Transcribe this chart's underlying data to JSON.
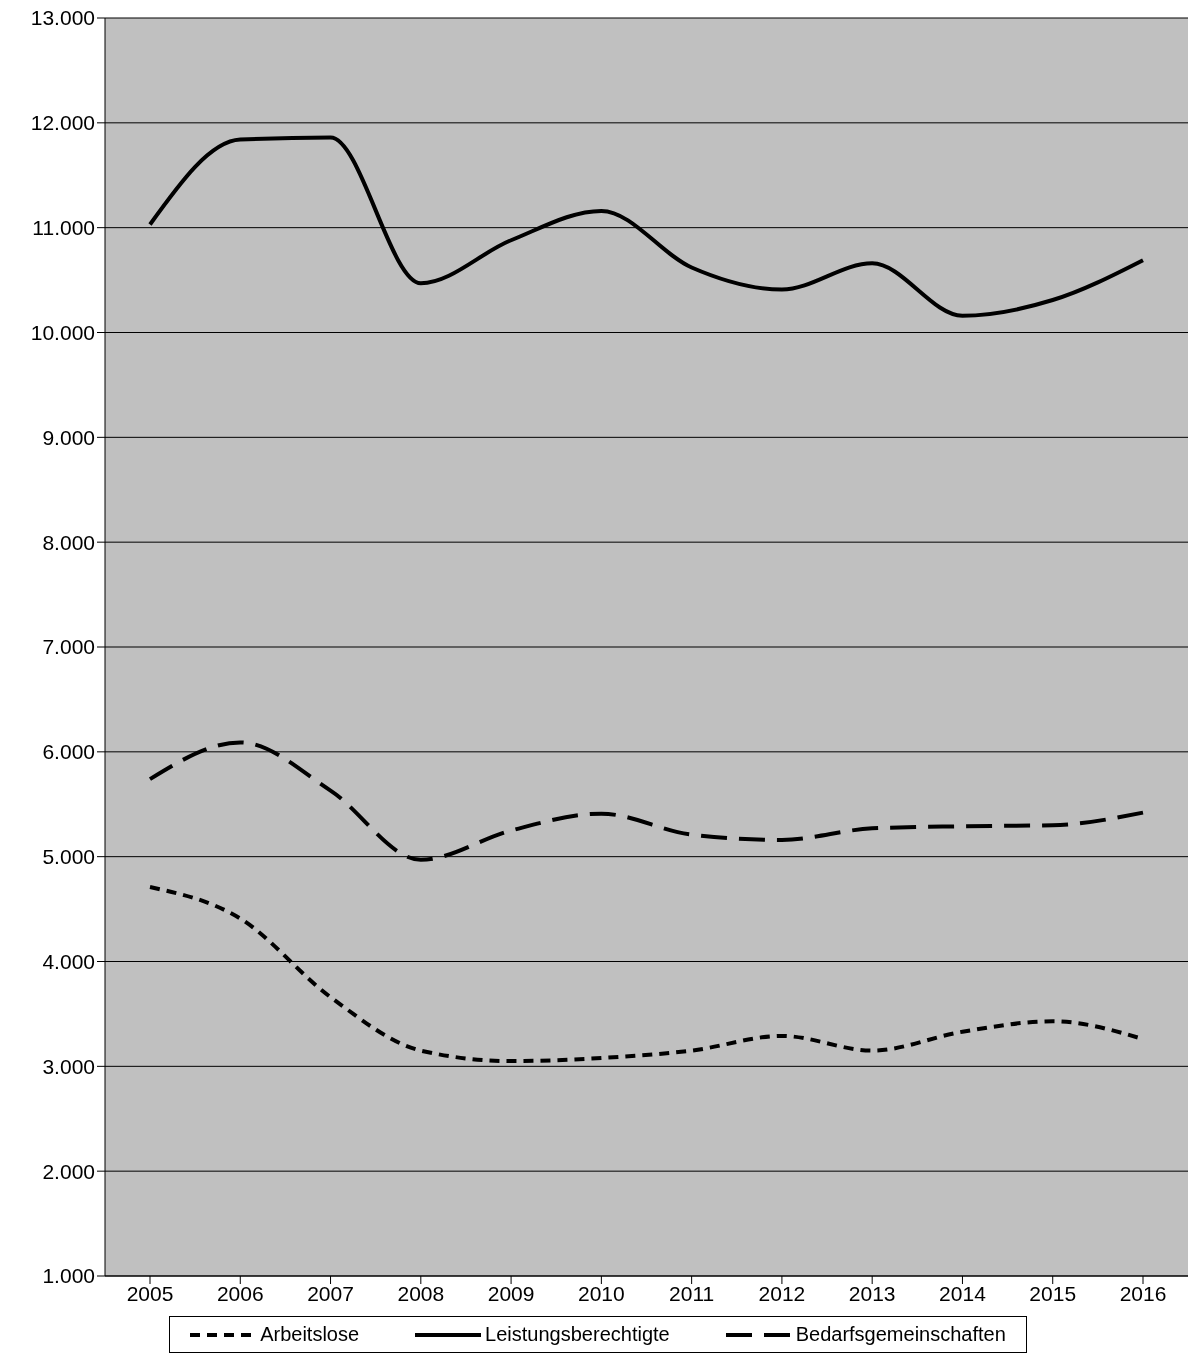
{
  "chart_data": {
    "type": "line",
    "categories": [
      "2005",
      "2006",
      "2007",
      "2008",
      "2009",
      "2010",
      "2011",
      "2012",
      "2013",
      "2014",
      "2015",
      "2016"
    ],
    "series": [
      {
        "name": "Arbeitslose",
        "color": "#000000",
        "line_style": "dotted",
        "values": [
          4710,
          4410,
          3660,
          3150,
          3050,
          3080,
          3150,
          3290,
          3150,
          3330,
          3430,
          3260
        ]
      },
      {
        "name": "Leistungsberechtigte",
        "color": "#000000",
        "line_style": "solid",
        "values": [
          11030,
          11840,
          11860,
          10470,
          10880,
          11160,
          10620,
          10410,
          10660,
          10160,
          10310,
          10690
        ]
      },
      {
        "name": "Bedarfsgemeinschaften",
        "color": "#000000",
        "line_style": "dashed",
        "values": [
          5740,
          6090,
          5630,
          4970,
          5250,
          5410,
          5210,
          5160,
          5270,
          5290,
          5300,
          5420
        ]
      }
    ],
    "ylim": [
      1000,
      13000
    ],
    "yticks": [
      {
        "value": 1000,
        "label": "1.000"
      },
      {
        "value": 2000,
        "label": "2.000"
      },
      {
        "value": 3000,
        "label": "3.000"
      },
      {
        "value": 4000,
        "label": "4.000"
      },
      {
        "value": 5000,
        "label": "5.000"
      },
      {
        "value": 6000,
        "label": "6.000"
      },
      {
        "value": 7000,
        "label": "7.000"
      },
      {
        "value": 8000,
        "label": "8.000"
      },
      {
        "value": 9000,
        "label": "9.000"
      },
      {
        "value": 10000,
        "label": "10.000"
      },
      {
        "value": 11000,
        "label": "11.000"
      },
      {
        "value": 12000,
        "label": "12.000"
      },
      {
        "value": 13000,
        "label": "13.000"
      }
    ],
    "grid": "y",
    "legend": "bottom",
    "marker": "none"
  }
}
